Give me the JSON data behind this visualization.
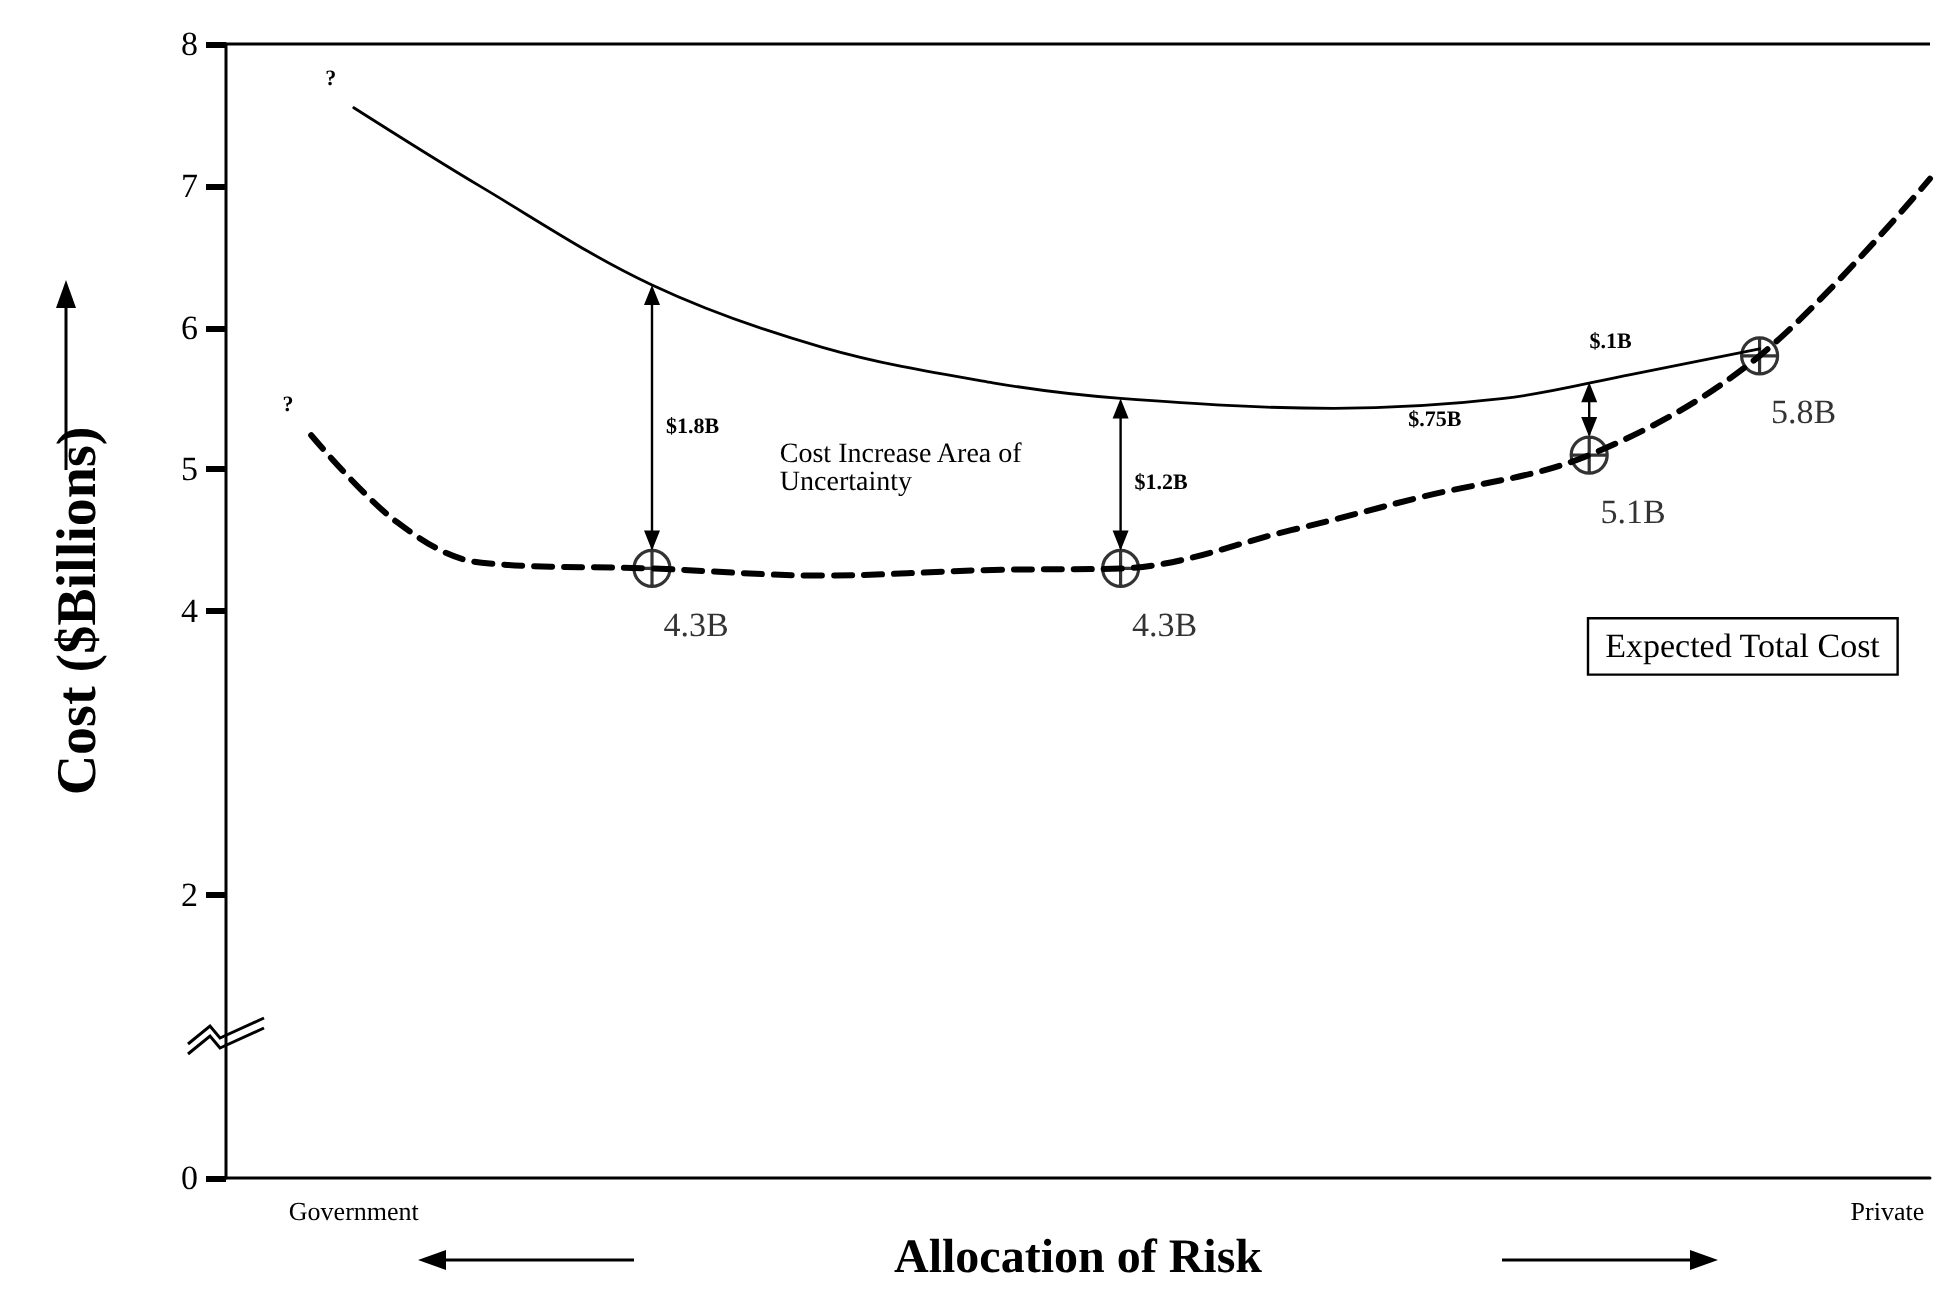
{
  "chart_data": {
    "type": "line",
    "xlabel": "Allocation of Risk",
    "ylabel": "Cost ($Billions)",
    "categories": [
      null,
      null,
      null,
      "Government",
      null,
      null,
      null,
      null,
      null,
      null,
      null,
      null,
      null,
      null,
      null,
      null,
      null,
      null,
      null,
      null,
      null,
      null,
      null,
      null,
      null,
      null,
      null,
      null,
      null,
      null,
      null,
      null,
      null,
      null,
      null,
      null,
      null,
      null,
      null,
      "Private",
      null
    ],
    "ylim": [
      0,
      8
    ],
    "yticks": [
      0,
      2,
      4,
      5,
      6,
      7,
      8
    ],
    "grid": false,
    "series": [
      {
        "color": "#000000",
        "line_style": "solid",
        "marker": "none",
        "values": [
          null,
          null,
          null,
          7.55,
          null,
          null,
          6.99,
          null,
          null,
          null,
          6.3,
          null,
          null,
          null,
          5.86,
          null,
          null,
          null,
          5.61,
          null,
          null,
          5.5,
          null,
          null,
          null,
          null,
          5.43,
          null,
          null,
          null,
          5.5,
          null,
          null,
          5.67,
          null,
          null,
          5.85,
          null,
          null,
          null,
          null
        ]
      },
      {
        "color": "#000000",
        "line_style": "dashed",
        "marker": "none",
        "values": [
          null,
          null,
          5.24,
          null,
          4.63,
          null,
          4.34,
          null,
          null,
          null,
          4.3,
          null,
          null,
          null,
          4.25,
          null,
          null,
          null,
          4.29,
          null,
          null,
          4.3,
          null,
          null,
          null,
          4.57,
          null,
          null,
          4.8,
          null,
          null,
          null,
          5.1,
          null,
          null,
          null,
          5.8,
          null,
          null,
          null,
          7.05
        ]
      },
      {
        "type": "scatter",
        "color": "#000000",
        "marker": "cross",
        "values": [
          null,
          null,
          null,
          null,
          null,
          null,
          null,
          null,
          null,
          null,
          4.3,
          null,
          null,
          null,
          null,
          null,
          null,
          null,
          null,
          null,
          null,
          4.3,
          null,
          null,
          null,
          null,
          null,
          null,
          null,
          null,
          null,
          null,
          5.1,
          null,
          null,
          null,
          5.8,
          null,
          null,
          null,
          null
        ],
        "value_labels": [
          null,
          null,
          null,
          null,
          null,
          null,
          null,
          null,
          null,
          null,
          "4.3B",
          null,
          null,
          null,
          null,
          null,
          null,
          null,
          null,
          null,
          null,
          "4.3B",
          null,
          null,
          null,
          null,
          null,
          null,
          null,
          null,
          null,
          null,
          "5.1B",
          null,
          null,
          null,
          "5.8B",
          null,
          null,
          null,
          null
        ]
      }
    ],
    "annotations": [
      "?",
      "?",
      "$1.8B",
      "$1.2B",
      "$.75B",
      "$.1B",
      "Cost Increase Area of Uncertainty",
      "Expected Total Cost"
    ]
  }
}
